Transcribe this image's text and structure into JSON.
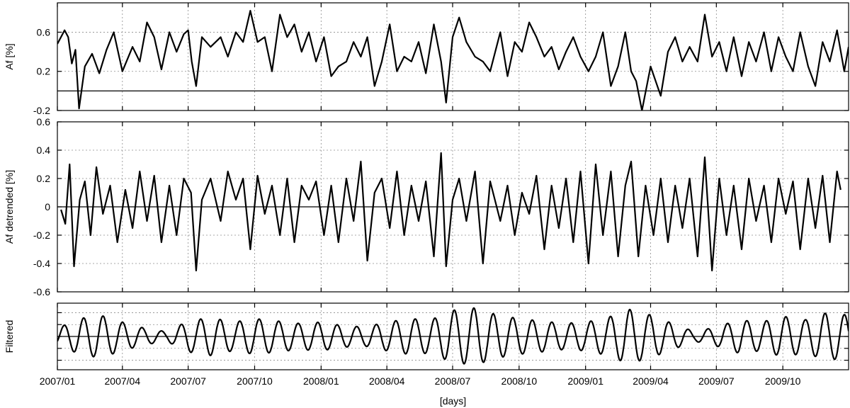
{
  "chart_data": [
    {
      "type": "line",
      "ylabel": "Af [%]",
      "ylim": [
        -0.2,
        0.9
      ],
      "yticks": [
        -0.2,
        0.2,
        0.6
      ],
      "ytick_labels": [
        "-0.2",
        "0.2",
        "0.6"
      ],
      "reference_line": 0,
      "grid": true,
      "series": [
        {
          "x": [
            "2007-01-01",
            "2007-01-11",
            "2007-01-16",
            "2007-01-21",
            "2007-01-26",
            "2007-01-31",
            "2007-02-08",
            "2007-02-18",
            "2007-02-28",
            "2007-03-10",
            "2007-03-20",
            "2007-04-01",
            "2007-04-15",
            "2007-04-25",
            "2007-05-05",
            "2007-05-15",
            "2007-05-25",
            "2007-06-05",
            "2007-06-15",
            "2007-06-25",
            "2007-07-01",
            "2007-07-06",
            "2007-07-12",
            "2007-07-20",
            "2007-08-01",
            "2007-08-15",
            "2007-08-25",
            "2007-09-05",
            "2007-09-15",
            "2007-09-25",
            "2007-10-05",
            "2007-10-15",
            "2007-10-25",
            "2007-11-05",
            "2007-11-15",
            "2007-11-25",
            "2007-12-05",
            "2007-12-15",
            "2007-12-25",
            "2008-01-05",
            "2008-01-15",
            "2008-01-25",
            "2008-02-05",
            "2008-02-15",
            "2008-02-25",
            "2008-03-05",
            "2008-03-15",
            "2008-03-25",
            "2008-04-05",
            "2008-04-15",
            "2008-04-25",
            "2008-05-05",
            "2008-05-15",
            "2008-05-25",
            "2008-06-05",
            "2008-06-15",
            "2008-06-22",
            "2008-07-01",
            "2008-07-10",
            "2008-07-20",
            "2008-08-01",
            "2008-08-12",
            "2008-08-22",
            "2008-09-05",
            "2008-09-15",
            "2008-09-25",
            "2008-10-05",
            "2008-10-15",
            "2008-10-25",
            "2008-11-05",
            "2008-11-15",
            "2008-11-25",
            "2008-12-05",
            "2008-12-15",
            "2008-12-25",
            "2009-01-05",
            "2009-01-15",
            "2009-01-25",
            "2009-02-05",
            "2009-02-15",
            "2009-02-25",
            "2009-03-05",
            "2009-03-12",
            "2009-03-20",
            "2009-04-01",
            "2009-04-15",
            "2009-04-25",
            "2009-05-05",
            "2009-05-15",
            "2009-05-25",
            "2009-06-05",
            "2009-06-15",
            "2009-06-25",
            "2009-07-05",
            "2009-07-15",
            "2009-07-25",
            "2009-08-05",
            "2009-08-15",
            "2009-08-25",
            "2009-09-05",
            "2009-09-15",
            "2009-09-25",
            "2009-10-05",
            "2009-10-15",
            "2009-10-25",
            "2009-11-05",
            "2009-11-15",
            "2009-11-25",
            "2009-12-05",
            "2009-12-15",
            "2009-12-25",
            "2009-12-31"
          ],
          "values": [
            0.48,
            0.62,
            0.55,
            0.28,
            0.42,
            -0.18,
            0.25,
            0.38,
            0.18,
            0.42,
            0.6,
            0.2,
            0.45,
            0.3,
            0.7,
            0.55,
            0.22,
            0.6,
            0.4,
            0.58,
            0.62,
            0.3,
            0.05,
            0.55,
            0.45,
            0.55,
            0.35,
            0.6,
            0.5,
            0.82,
            0.5,
            0.55,
            0.2,
            0.78,
            0.55,
            0.68,
            0.4,
            0.6,
            0.3,
            0.55,
            0.15,
            0.25,
            0.3,
            0.5,
            0.35,
            0.55,
            0.05,
            0.3,
            0.68,
            0.2,
            0.35,
            0.3,
            0.5,
            0.18,
            0.68,
            0.3,
            -0.12,
            0.55,
            0.75,
            0.5,
            0.35,
            0.3,
            0.2,
            0.6,
            0.15,
            0.5,
            0.4,
            0.7,
            0.55,
            0.35,
            0.45,
            0.22,
            0.4,
            0.55,
            0.35,
            0.2,
            0.35,
            0.6,
            0.05,
            0.25,
            0.6,
            0.2,
            0.1,
            -0.2,
            0.25,
            -0.05,
            0.4,
            0.55,
            0.3,
            0.45,
            0.3,
            0.78,
            0.35,
            0.5,
            0.2,
            0.55,
            0.15,
            0.5,
            0.3,
            0.6,
            0.2,
            0.55,
            0.35,
            0.2,
            0.6,
            0.25,
            0.05,
            0.5,
            0.3,
            0.62,
            0.2,
            0.45
          ],
          "color": "#000000"
        }
      ]
    },
    {
      "type": "line",
      "ylabel": "Af detrended [%]",
      "ylim": [
        -0.6,
        0.6
      ],
      "yticks": [
        -0.6,
        -0.4,
        -0.2,
        0,
        0.2,
        0.4,
        0.6
      ],
      "ytick_labels": [
        "-0.6",
        "-0.4",
        "-0.2",
        "0",
        "0.2",
        "0.4",
        "0.6"
      ],
      "reference_line": 0,
      "grid": true,
      "series": [
        {
          "x": [
            "2007-01-06",
            "2007-01-12",
            "2007-01-18",
            "2007-01-24",
            "2007-02-01",
            "2007-02-08",
            "2007-02-16",
            "2007-02-24",
            "2007-03-05",
            "2007-03-15",
            "2007-03-25",
            "2007-04-05",
            "2007-04-15",
            "2007-04-25",
            "2007-05-05",
            "2007-05-15",
            "2007-05-25",
            "2007-06-05",
            "2007-06-15",
            "2007-06-25",
            "2007-07-05",
            "2007-07-12",
            "2007-07-20",
            "2007-08-01",
            "2007-08-15",
            "2007-08-25",
            "2007-09-05",
            "2007-09-15",
            "2007-09-25",
            "2007-10-05",
            "2007-10-15",
            "2007-10-25",
            "2007-11-05",
            "2007-11-15",
            "2007-11-25",
            "2007-12-05",
            "2007-12-15",
            "2007-12-25",
            "2008-01-05",
            "2008-01-15",
            "2008-01-25",
            "2008-02-05",
            "2008-02-15",
            "2008-02-25",
            "2008-03-05",
            "2008-03-15",
            "2008-03-25",
            "2008-04-05",
            "2008-04-15",
            "2008-04-25",
            "2008-05-05",
            "2008-05-15",
            "2008-05-25",
            "2008-06-05",
            "2008-06-15",
            "2008-06-22",
            "2008-07-01",
            "2008-07-10",
            "2008-07-20",
            "2008-08-01",
            "2008-08-12",
            "2008-08-22",
            "2008-09-05",
            "2008-09-15",
            "2008-09-25",
            "2008-10-05",
            "2008-10-15",
            "2008-10-25",
            "2008-11-05",
            "2008-11-15",
            "2008-11-25",
            "2008-12-05",
            "2008-12-15",
            "2008-12-25",
            "2009-01-05",
            "2009-01-15",
            "2009-01-25",
            "2009-02-05",
            "2009-02-15",
            "2009-02-25",
            "2009-03-05",
            "2009-03-15",
            "2009-03-25",
            "2009-04-05",
            "2009-04-15",
            "2009-04-25",
            "2009-05-05",
            "2009-05-15",
            "2009-05-25",
            "2009-06-05",
            "2009-06-15",
            "2009-06-25",
            "2009-07-05",
            "2009-07-15",
            "2009-07-25",
            "2009-08-05",
            "2009-08-15",
            "2009-08-25",
            "2009-09-05",
            "2009-09-15",
            "2009-09-25",
            "2009-10-05",
            "2009-10-15",
            "2009-10-25",
            "2009-11-05",
            "2009-11-15",
            "2009-11-25",
            "2009-12-05",
            "2009-12-15",
            "2009-12-20"
          ],
          "values": [
            -0.02,
            -0.12,
            0.3,
            -0.42,
            0.05,
            0.18,
            -0.2,
            0.28,
            -0.05,
            0.15,
            -0.25,
            0.12,
            -0.15,
            0.25,
            -0.1,
            0.22,
            -0.25,
            0.15,
            -0.2,
            0.2,
            0.1,
            -0.45,
            0.05,
            0.2,
            -0.1,
            0.25,
            0.05,
            0.2,
            -0.3,
            0.22,
            -0.05,
            0.15,
            -0.2,
            0.2,
            -0.25,
            0.15,
            0.05,
            0.18,
            -0.2,
            0.15,
            -0.25,
            0.2,
            -0.1,
            0.32,
            -0.38,
            0.1,
            0.2,
            -0.15,
            0.25,
            -0.2,
            0.15,
            -0.1,
            0.18,
            -0.35,
            0.38,
            -0.42,
            0.05,
            0.2,
            -0.1,
            0.25,
            -0.4,
            0.18,
            -0.1,
            0.15,
            -0.2,
            0.1,
            -0.05,
            0.22,
            -0.3,
            0.15,
            -0.15,
            0.2,
            -0.25,
            0.25,
            -0.4,
            0.3,
            -0.2,
            0.25,
            -0.35,
            0.15,
            0.32,
            -0.35,
            0.15,
            -0.2,
            0.2,
            -0.25,
            0.15,
            -0.15,
            0.2,
            -0.35,
            0.35,
            -0.45,
            0.2,
            -0.2,
            0.15,
            -0.3,
            0.2,
            -0.1,
            0.15,
            -0.25,
            0.2,
            -0.05,
            0.18,
            -0.3,
            0.2,
            -0.15,
            0.22,
            -0.25,
            0.25,
            0.12
          ],
          "color": "#000000"
        }
      ]
    },
    {
      "type": "line",
      "ylabel": "Filtered",
      "ylim": [
        -1.4,
        1.4
      ],
      "yticks": [
        -1.0,
        -0.5,
        0,
        0.5,
        1.0
      ],
      "reference_line": 0,
      "grid": true,
      "xlabel": "[days]",
      "xlim": [
        "2007-01-01",
        "2009-12-31"
      ],
      "xticks": [
        "2007-01-01",
        "2007-04-01",
        "2007-07-01",
        "2007-10-01",
        "2008-01-01",
        "2008-04-01",
        "2008-07-01",
        "2008-10-01",
        "2009-01-01",
        "2009-04-01",
        "2009-07-01",
        "2009-10-01"
      ],
      "xtick_labels": [
        "2007/01",
        "2007/04",
        "2007/07",
        "2007/10",
        "2008/01",
        "2008/04",
        "2008/07",
        "2008/10",
        "2009/01",
        "2009/04",
        "2009/07",
        "2009/10"
      ],
      "series": [
        {
          "oscillation_period_days": 27,
          "envelope_dates": [
            "2007-01-01",
            "2007-02-01",
            "2007-03-01",
            "2007-04-01",
            "2007-05-01",
            "2007-06-01",
            "2007-07-01",
            "2007-08-01",
            "2007-09-01",
            "2007-10-01",
            "2007-11-01",
            "2007-12-01",
            "2008-01-01",
            "2008-02-01",
            "2008-03-01",
            "2008-04-01",
            "2008-05-01",
            "2008-06-01",
            "2008-07-01",
            "2008-08-01",
            "2008-09-01",
            "2008-10-01",
            "2008-11-01",
            "2008-12-01",
            "2009-01-01",
            "2009-02-01",
            "2009-03-01",
            "2009-04-01",
            "2009-05-01",
            "2009-06-01",
            "2009-07-01",
            "2009-08-01",
            "2009-09-01",
            "2009-10-01",
            "2009-11-01",
            "2009-12-01",
            "2009-12-31"
          ],
          "envelope": [
            0.35,
            0.75,
            0.9,
            0.6,
            0.35,
            0.2,
            0.65,
            0.8,
            0.6,
            0.75,
            0.65,
            0.55,
            0.6,
            0.45,
            0.4,
            0.6,
            0.75,
            0.7,
            1.1,
            1.2,
            0.9,
            0.75,
            0.65,
            0.55,
            0.6,
            0.8,
            1.15,
            0.9,
            0.55,
            0.2,
            0.4,
            0.7,
            0.6,
            0.85,
            0.7,
            1.0,
            0.9
          ],
          "color": "#000000"
        }
      ]
    }
  ]
}
